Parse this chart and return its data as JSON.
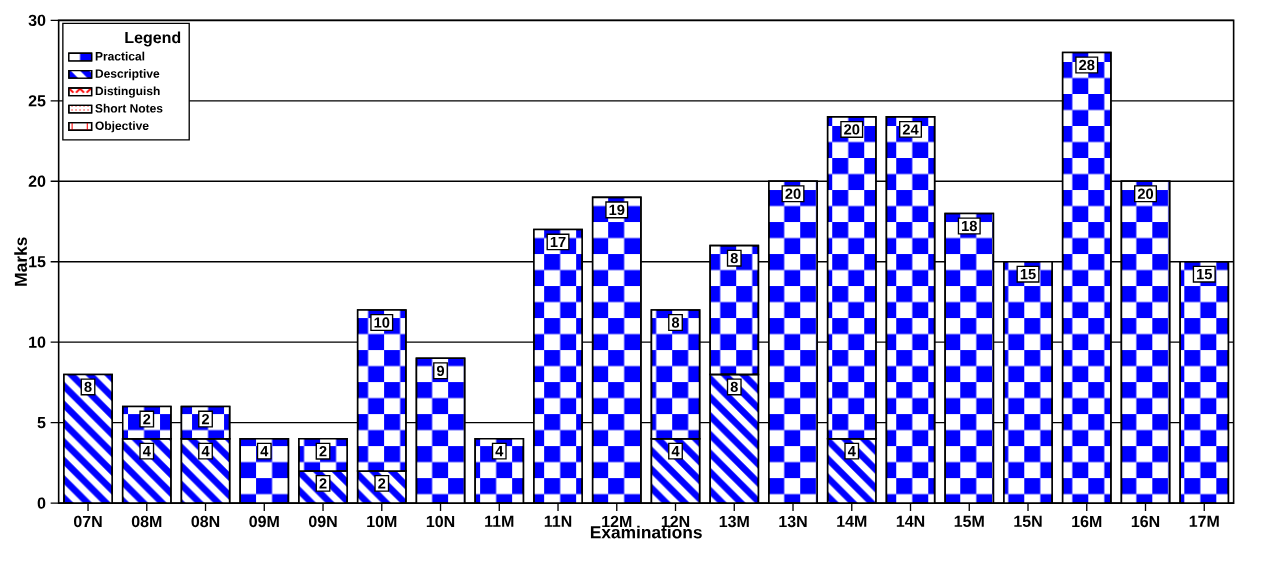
{
  "chart_data": {
    "type": "bar",
    "stacked": true,
    "xlabel": "Examinations",
    "ylabel": "Marks",
    "legend_title": "Legend",
    "legend": "top left",
    "grid": "y",
    "data_labels": true,
    "categories": [
      "07N",
      "08M",
      "08N",
      "09M",
      "09N",
      "10M",
      "10N",
      "11M",
      "11N",
      "12M",
      "12N",
      "13M",
      "13N",
      "14M",
      "14N",
      "15M",
      "15N",
      "16M",
      "16N",
      "17M"
    ],
    "ylim": [
      0,
      30
    ],
    "yticks": [
      0,
      5,
      10,
      15,
      20,
      25,
      30
    ],
    "series": [
      {
        "name": "Descriptive",
        "color": "#0000ff",
        "values": [
          8,
          4,
          4,
          null,
          2,
          2,
          null,
          null,
          null,
          null,
          4,
          8,
          null,
          4,
          null,
          null,
          null,
          null,
          null,
          null
        ]
      },
      {
        "name": "Practical",
        "color": "#0000ff",
        "values": [
          null,
          2,
          2,
          4,
          2,
          10,
          9,
          4,
          17,
          19,
          8,
          8,
          20,
          20,
          24,
          18,
          15,
          28,
          20,
          15
        ]
      },
      {
        "name": "Distinguish",
        "color": "#ff0000",
        "values": [
          null,
          null,
          null,
          null,
          null,
          null,
          null,
          null,
          null,
          null,
          null,
          null,
          null,
          null,
          null,
          null,
          null,
          null,
          null,
          null
        ]
      },
      {
        "name": "Short Notes",
        "color": "#ff0000",
        "values": [
          null,
          null,
          null,
          null,
          null,
          null,
          null,
          null,
          null,
          null,
          null,
          null,
          null,
          null,
          null,
          null,
          null,
          null,
          null,
          null
        ]
      },
      {
        "name": "Objective",
        "color": "#ff0000",
        "values": [
          null,
          null,
          null,
          null,
          null,
          null,
          null,
          null,
          null,
          null,
          null,
          null,
          null,
          null,
          null,
          null,
          null,
          null,
          null,
          null
        ]
      }
    ]
  }
}
